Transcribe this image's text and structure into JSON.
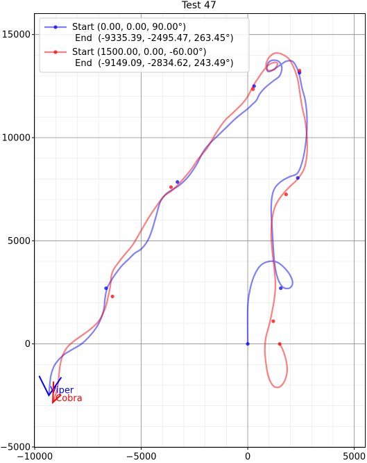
{
  "chart_data": {
    "type": "line",
    "title": "Test 47",
    "xlim": [
      -10000,
      5500
    ],
    "ylim": [
      -5000,
      16000
    ],
    "xticks": [
      -10000,
      -5000,
      0,
      5000
    ],
    "yticks": [
      -5000,
      0,
      5000,
      10000,
      15000
    ],
    "xtick_labels": [
      "−10000",
      "−5000",
      "0",
      "5000"
    ],
    "ytick_labels": [
      "−5000",
      "0",
      "5000",
      "10000",
      "15000"
    ],
    "grid": true,
    "minor_grid": true,
    "legend_placement": "top-left",
    "series": [
      {
        "name": "Start (0.00, 0.00, 90.00°)",
        "name_line2": " End  (-9335.39, -2495.47, 263.45°)",
        "color": "#0000ff",
        "label": "Viper",
        "x": [
          0,
          0,
          100,
          300,
          600,
          1000,
          1400,
          1800,
          2050,
          2100,
          1950,
          1650,
          1400,
          1250,
          1150,
          1100,
          1150,
          1300,
          1600,
          1950,
          2350,
          2600,
          2750,
          2780,
          2700,
          2550,
          2430,
          2300,
          2100,
          1800,
          1500,
          1200,
          1000,
          900,
          950,
          1150,
          1450,
          1600,
          1500,
          1200,
          900,
          700,
          550,
          400,
          200,
          0,
          -250,
          -600,
          -1000,
          -1400,
          -1800,
          -2100,
          -2400,
          -2800,
          -3200,
          -3500,
          -3800,
          -4100,
          -4300,
          -4500,
          -4700,
          -5000,
          -5300,
          -5600,
          -5900,
          -6200,
          -6450,
          -6600,
          -6700,
          -6750,
          -6900,
          -7100,
          -7400,
          -7800,
          -8200,
          -8600,
          -8900,
          -9100,
          -9250,
          -9335
        ],
        "y": [
          0,
          1800,
          2600,
          3300,
          3800,
          4000,
          3950,
          3600,
          3200,
          2900,
          2700,
          2750,
          3200,
          4000,
          5500,
          6500,
          7200,
          7600,
          7900,
          8100,
          8300,
          9000,
          10000,
          11000,
          11800,
          12400,
          13000,
          13400,
          13700,
          13700,
          13500,
          13300,
          13200,
          13300,
          13600,
          13750,
          13700,
          13400,
          13000,
          12750,
          12500,
          12300,
          12100,
          11800,
          11600,
          11400,
          11200,
          10900,
          10500,
          10100,
          9700,
          9300,
          8700,
          8100,
          7700,
          7500,
          7300,
          6900,
          6200,
          5500,
          5000,
          4600,
          4400,
          4100,
          3800,
          3400,
          3000,
          2700,
          2200,
          1700,
          1200,
          800,
          400,
          0,
          -250,
          -500,
          -800,
          -1100,
          -1600,
          -2495
        ]
      },
      {
        "name": "Start (1500.00, 0.00, -60.00°)",
        "name_line2": " End  (-9149.09, -2834.62, 243.49°)",
        "color": "#ff0000",
        "label": "Cobra",
        "x": [
          1500,
          1650,
          1800,
          1850,
          1750,
          1550,
          1300,
          1100,
          950,
          850,
          800,
          850,
          950,
          1050,
          1150,
          1250,
          1300,
          1250,
          1150,
          1100,
          1150,
          1300,
          1600,
          1950,
          2350,
          2650,
          2780,
          2780,
          2700,
          2550,
          2430,
          2350,
          2200,
          1950,
          1600,
          1300,
          1050,
          900,
          850,
          900,
          1050,
          1250,
          1350,
          1400,
          1250,
          950,
          700,
          500,
          250,
          0,
          -300,
          -700,
          -1100,
          -1500,
          -1900,
          -2300,
          -2700,
          -3200,
          -3600,
          -3900,
          -4200,
          -4600,
          -5000,
          -5400,
          -5800,
          -6100,
          -6300,
          -6400,
          -6450,
          -6550,
          -6700,
          -7000,
          -7400,
          -7800,
          -8200,
          -8500,
          -8700,
          -8800,
          -8850,
          -8900,
          -9000,
          -9149
        ],
        "y": [
          0,
          -300,
          -800,
          -1300,
          -1750,
          -2050,
          -2100,
          -1900,
          -1500,
          -900,
          -300,
          300,
          700,
          1100,
          1600,
          2200,
          2900,
          3600,
          4500,
          5300,
          6100,
          6700,
          7200,
          7600,
          8000,
          8500,
          9200,
          10000,
          10800,
          11500,
          12300,
          12800,
          13300,
          13800,
          14050,
          14100,
          13950,
          13700,
          13450,
          13300,
          13250,
          13300,
          13450,
          13600,
          13650,
          13500,
          13200,
          12900,
          12500,
          12000,
          11600,
          11200,
          10800,
          10200,
          9500,
          9000,
          8400,
          7800,
          7400,
          7200,
          6800,
          6200,
          5500,
          4800,
          4300,
          3900,
          3600,
          3300,
          2800,
          2300,
          1700,
          1100,
          700,
          400,
          100,
          -200,
          -600,
          -1000,
          -1400,
          -1900,
          -2400,
          -2835
        ]
      }
    ],
    "markers": [
      {
        "series": 0,
        "x": [
          0,
          1550,
          2350,
          2430,
          300,
          -3300,
          -6650
        ],
        "y": [
          0,
          2700,
          8050,
          13150,
          12500,
          7850,
          2700
        ]
      },
      {
        "series": 1,
        "x": [
          1500,
          1200,
          1800,
          2430,
          250,
          -3600,
          -6350
        ],
        "y": [
          0,
          1100,
          7250,
          13250,
          12350,
          7600,
          2300
        ]
      }
    ]
  }
}
